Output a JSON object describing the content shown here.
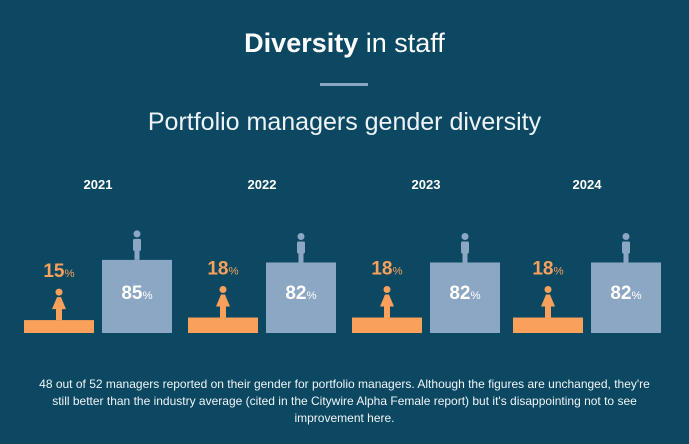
{
  "header": {
    "title_bold": "Diversity",
    "title_rest": " in staff",
    "subtitle": "Portfolio managers gender diversity"
  },
  "chart_data": {
    "type": "bar",
    "title": "Portfolio managers gender diversity",
    "categories": [
      "2021",
      "2022",
      "2023",
      "2024"
    ],
    "series": [
      {
        "name": "Female",
        "values": [
          15,
          18,
          18,
          18
        ],
        "color": "#f9a15a"
      },
      {
        "name": "Male",
        "values": [
          85,
          82,
          82,
          82
        ],
        "color": "#8ba7c4"
      }
    ],
    "unit": "%",
    "ylim": [
      0,
      100
    ]
  },
  "note": "48 out of 52 managers reported on their gender for portfolio managers. Although the figures are unchanged, they're still better than the industry average (cited in the Citywire Alpha Female report) but it's disappointing not to see improvement here."
}
